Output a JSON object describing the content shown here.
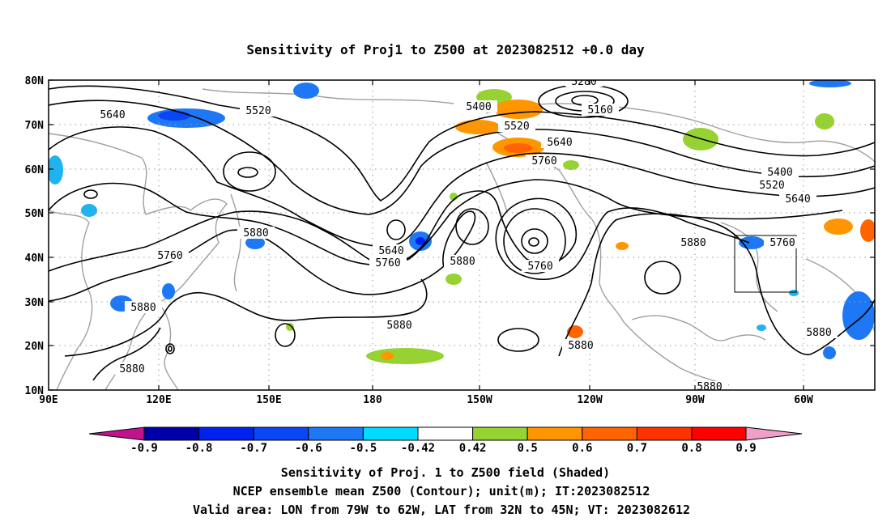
{
  "title": "Sensitivity of Proj1 to Z500 at 2023082512 +0.0 day",
  "lat_ticks": [
    "80N",
    "70N",
    "60N",
    "50N",
    "40N",
    "30N",
    "20N",
    "10N"
  ],
  "lon_ticks": [
    "90E",
    "120E",
    "150E",
    "180",
    "150W",
    "120W",
    "90W",
    "60W"
  ],
  "colorbar": {
    "labels": [
      "-0.9",
      "-0.8",
      "-0.7",
      "-0.6",
      "-0.5",
      "-0.42",
      "0.42",
      "0.5",
      "0.6",
      "0.7",
      "0.8",
      "0.9"
    ],
    "colors": [
      "#c0148c",
      "#0000aa",
      "#0022ee",
      "#0a46f5",
      "#1e78f5",
      "#1eb4f0",
      "#00dcff",
      "#ffffff",
      "#96d232",
      "#ff9600",
      "#ff6400",
      "#ff3200",
      "#ff0000",
      "#f0a0c8"
    ]
  },
  "contour_labels": [
    {
      "text": "5640"
    },
    {
      "text": "5520"
    },
    {
      "text": "5400"
    },
    {
      "text": "5280"
    },
    {
      "text": "5160"
    },
    {
      "text": "5520"
    },
    {
      "text": "5640"
    },
    {
      "text": "5760"
    },
    {
      "text": "5400"
    },
    {
      "text": "5520"
    },
    {
      "text": "5640"
    },
    {
      "text": "5760"
    },
    {
      "text": "5880"
    },
    {
      "text": "5880"
    },
    {
      "text": "5760"
    },
    {
      "text": "5640"
    },
    {
      "text": "5760"
    },
    {
      "text": "5880"
    },
    {
      "text": "5760"
    },
    {
      "text": "5880"
    },
    {
      "text": "5880"
    },
    {
      "text": "5880"
    },
    {
      "text": "5880"
    },
    {
      "text": "5880"
    },
    {
      "text": "5880"
    }
  ],
  "footer": {
    "line1": "Sensitivity of Proj. 1 to Z500 field (Shaded)",
    "line2": "NCEP ensemble mean Z500 (Contour); unit(m); IT:2023082512",
    "line3": "Valid area: LON from 79W to 62W, LAT from 32N to 45N; VT: 2023082612"
  },
  "colors": {
    "contour": "#000000",
    "coast": "#a0a0a0",
    "grid": "#9a9a9a",
    "frame": "#000000"
  }
}
